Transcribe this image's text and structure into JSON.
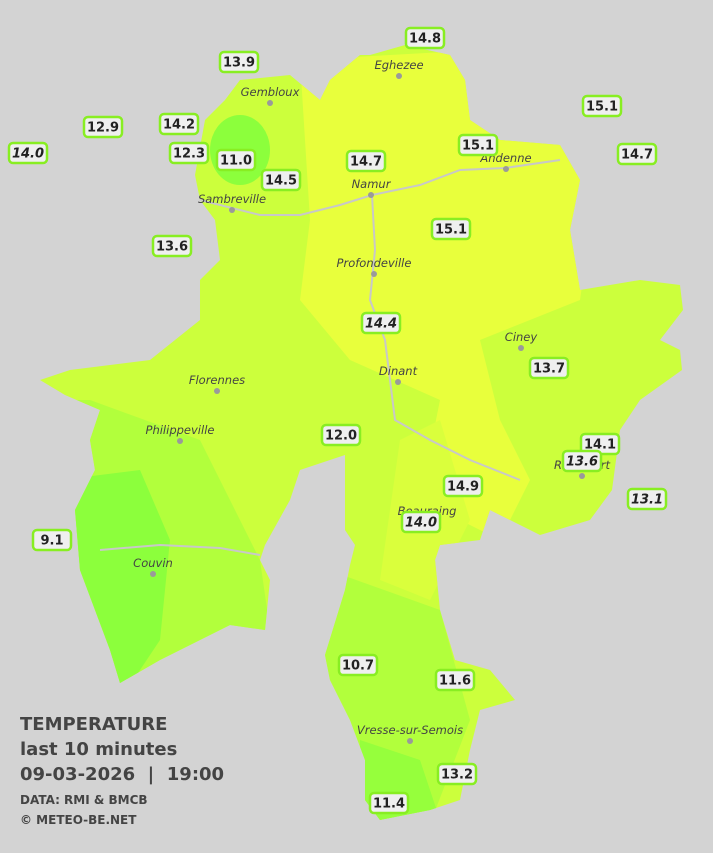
{
  "title": {
    "heading": "TEMPERATURE",
    "subheading": "last 10 minutes",
    "datetime": "09-03-2026  |  19:00",
    "source": "DATA: RMI & BMCB",
    "credit": "© METEO-BE.NET"
  },
  "towns": [
    "Eghezee",
    "Gembloux",
    "Andenne",
    "Namur",
    "Sambreville",
    "Profondeville",
    "Ciney",
    "Florennes",
    "Dinant",
    "Philippeville",
    "Beauraing",
    "Rochefort",
    "Couvin",
    "Vresse-sur-Semois"
  ],
  "stations": [
    {
      "label": "14.8"
    },
    {
      "label": "13.9"
    },
    {
      "label": "15.1"
    },
    {
      "label": "12.9"
    },
    {
      "label": "14.2"
    },
    {
      "label": "14.0",
      "italic": true
    },
    {
      "label": "12.3"
    },
    {
      "label": "11.0"
    },
    {
      "label": "15.1"
    },
    {
      "label": "14.7"
    },
    {
      "label": "14.7"
    },
    {
      "label": "14.5"
    },
    {
      "label": "15.1"
    },
    {
      "label": "13.6"
    },
    {
      "label": "14.4",
      "italic": true
    },
    {
      "label": "13.7"
    },
    {
      "label": "12.0"
    },
    {
      "label": "14.1"
    },
    {
      "label": "13.6",
      "italic": true
    },
    {
      "label": "13.1",
      "italic": true
    },
    {
      "label": "14.9"
    },
    {
      "label": "14.0",
      "italic": true
    },
    {
      "label": "9.1"
    },
    {
      "label": "10.7"
    },
    {
      "label": "11.6"
    },
    {
      "label": "13.2"
    },
    {
      "label": "11.4"
    }
  ]
}
